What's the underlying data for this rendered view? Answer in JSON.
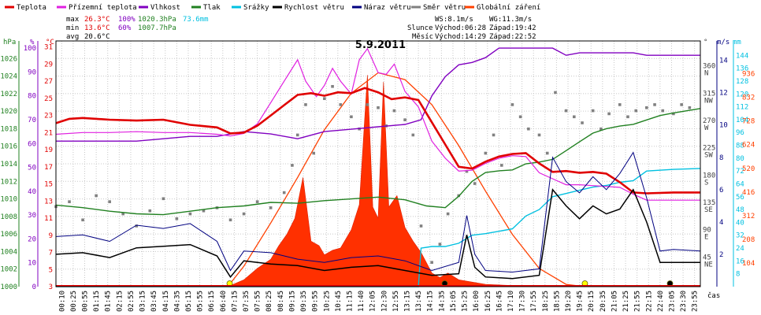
{
  "chart_data": {
    "type": "line",
    "title": "5.9.2011",
    "xlabel": "čas",
    "legend": [
      {
        "name": "Teplota",
        "color": "#e00000"
      },
      {
        "name": "Přízemní teplota",
        "color": "#e020e0"
      },
      {
        "name": "Vlhkost",
        "color": "#8000c0"
      },
      {
        "name": "Tlak",
        "color": "#208020"
      },
      {
        "name": "Srážky",
        "color": "#00c0e0"
      },
      {
        "name": "Rychlost větru",
        "color": "#000000"
      },
      {
        "name": "Náraz větru",
        "color": "#000080"
      },
      {
        "name": "Směr větru",
        "color": "#808080"
      },
      {
        "name": "Globální záření",
        "color": "#ff4000"
      }
    ],
    "stats": {
      "max_label": "max",
      "max_temp": "26.3°C",
      "max_hum": "100%",
      "max_press": "1020.3hPa",
      "max_rain": "73.6mm",
      "min_label": "min",
      "min_temp": "13.6°C",
      "min_hum": "60%",
      "min_press": "1007.7hPa",
      "avg_label": "avg",
      "avg_temp": "20.6°C"
    },
    "wind_info": {
      "ws": "WS:8.1m/s",
      "wg": "WG:11.3m/s"
    },
    "sun": {
      "label": "Slunce",
      "rise": "Východ:06:28",
      "set": "Západ:19:42"
    },
    "moon": {
      "label": "Měsíc",
      "rise": "Východ:14:29",
      "set": "Západ:22:52"
    },
    "axes": {
      "hpa": {
        "unit": "hPa",
        "color": "#208020",
        "ticks": [
          "1000",
          "1002",
          "1004",
          "1006",
          "1008",
          "1010",
          "1012",
          "1014",
          "1016",
          "1018",
          "1020",
          "1022",
          "1024",
          "1026"
        ]
      },
      "pct": {
        "unit": "%",
        "color": "#8000c0",
        "ticks": [
          "0",
          "10",
          "20",
          "30",
          "40",
          "50",
          "60",
          "70",
          "80",
          "90",
          "100"
        ]
      },
      "degc": {
        "unit": "°C",
        "color": "#e00000",
        "ticks": [
          "3",
          "5",
          "7",
          "9",
          "11",
          "13",
          "15",
          "17",
          "19",
          "21",
          "23",
          "25",
          "27",
          "29",
          "31"
        ]
      },
      "dir": {
        "unit": "°",
        "color": "#404040",
        "ticks": [
          "45",
          "90",
          "135",
          "180",
          "225",
          "270",
          "315",
          "360"
        ],
        "labels": [
          "NE",
          "E",
          "SE",
          "S",
          "SW",
          "W",
          "NW",
          "N"
        ]
      },
      "ms": {
        "unit": "m/s",
        "color": "#000080",
        "ticks": [
          "2",
          "4",
          "6",
          "8",
          "10",
          "12",
          "14"
        ]
      },
      "mm": {
        "unit": "mm",
        "color": "#00c0e0",
        "ticks": [
          "8",
          "16",
          "24",
          "32",
          "40",
          "48",
          "56",
          "64",
          "72",
          "80",
          "88",
          "96",
          "104",
          "112",
          "120",
          "128",
          "136",
          "144"
        ]
      },
      "wm2": {
        "color": "#ff4000",
        "ticks": [
          "104",
          "208",
          "312",
          "416",
          "520",
          "624",
          "728",
          "832",
          "936"
        ]
      }
    },
    "x_ticks": [
      "00:10",
      "00:25",
      "00:55",
      "01:15",
      "01:45",
      "02:15",
      "02:55",
      "03:15",
      "03:45",
      "04:15",
      "04:35",
      "05:15",
      "05:55",
      "06:15",
      "06:40",
      "07:15",
      "07:35",
      "07:55",
      "08:25",
      "08:45",
      "09:15",
      "09:35",
      "09:55",
      "10:25",
      "10:45",
      "11:15",
      "11:40",
      "12:05",
      "12:30",
      "12:55",
      "13:15",
      "13:45",
      "14:15",
      "14:35",
      "15:05",
      "15:25",
      "16:00",
      "16:25",
      "16:45",
      "17:10",
      "17:30",
      "17:55",
      "18:25",
      "18:55",
      "19:20",
      "19:45",
      "20:15",
      "20:35",
      "21:05",
      "21:25",
      "21:55",
      "22:15",
      "22:40",
      "23:05",
      "23:30",
      "23:55"
    ],
    "series_temp": [
      [
        0,
        22.1
      ],
      [
        0.5,
        22.6
      ],
      [
        1,
        22.7
      ],
      [
        2,
        22.5
      ],
      [
        3,
        22.4
      ],
      [
        4,
        22.5
      ],
      [
        5,
        21.9
      ],
      [
        6,
        21.6
      ],
      [
        6.5,
        20.9
      ],
      [
        7,
        21.0
      ],
      [
        7.5,
        21.8
      ],
      [
        8,
        23.0
      ],
      [
        8.5,
        24.2
      ],
      [
        9,
        25.4
      ],
      [
        9.5,
        25.6
      ],
      [
        10,
        25.3
      ],
      [
        10.5,
        25.7
      ],
      [
        11,
        25.6
      ],
      [
        11.5,
        26.2
      ],
      [
        12,
        25.7
      ],
      [
        12.5,
        24.9
      ],
      [
        13,
        25.1
      ],
      [
        13.5,
        24.8
      ],
      [
        14,
        22.2
      ],
      [
        14.5,
        19.6
      ],
      [
        15,
        17.0
      ],
      [
        15.5,
        16.8
      ],
      [
        16,
        17.6
      ],
      [
        16.5,
        18.2
      ],
      [
        17,
        18.5
      ],
      [
        17.5,
        18.6
      ],
      [
        18,
        17.4
      ],
      [
        18.5,
        16.4
      ],
      [
        19,
        16.5
      ],
      [
        19.5,
        16.3
      ],
      [
        20,
        16.4
      ],
      [
        20.5,
        16.2
      ],
      [
        21,
        15.2
      ],
      [
        21.5,
        14.0
      ],
      [
        22,
        13.9
      ],
      [
        23,
        14.0
      ],
      [
        24,
        14.0
      ]
    ],
    "series_ground": [
      [
        0,
        20.8
      ],
      [
        1,
        21.0
      ],
      [
        2,
        21.0
      ],
      [
        3,
        21.1
      ],
      [
        4,
        21.0
      ],
      [
        5,
        21.0
      ],
      [
        6,
        20.8
      ],
      [
        6.5,
        20.6
      ],
      [
        7,
        20.9
      ],
      [
        7.5,
        22.0
      ],
      [
        8,
        24.5
      ],
      [
        8.5,
        27.0
      ],
      [
        9,
        29.5
      ],
      [
        9.3,
        27.0
      ],
      [
        9.7,
        25.2
      ],
      [
        10,
        26.5
      ],
      [
        10.3,
        28.5
      ],
      [
        10.6,
        27.0
      ],
      [
        11,
        25.5
      ],
      [
        11.3,
        29.5
      ],
      [
        11.6,
        30.8
      ],
      [
        12,
        28.0
      ],
      [
        12.3,
        27.8
      ],
      [
        12.6,
        29.0
      ],
      [
        13,
        25.8
      ],
      [
        13.5,
        24.0
      ],
      [
        14,
        20.0
      ],
      [
        14.5,
        18.0
      ],
      [
        15,
        16.5
      ],
      [
        15.5,
        16.6
      ],
      [
        16,
        17.4
      ],
      [
        16.5,
        18.0
      ],
      [
        17,
        18.3
      ],
      [
        17.5,
        18.2
      ],
      [
        18,
        16.3
      ],
      [
        18.5,
        15.6
      ],
      [
        19,
        14.9
      ],
      [
        19.5,
        14.9
      ],
      [
        20,
        14.8
      ],
      [
        21,
        14.6
      ],
      [
        21.5,
        13.8
      ],
      [
        22,
        13.1
      ],
      [
        23,
        13.1
      ],
      [
        24,
        13.1
      ]
    ],
    "series_humidity": [
      [
        0,
        61
      ],
      [
        1,
        61
      ],
      [
        2,
        61
      ],
      [
        3,
        61
      ],
      [
        4,
        62
      ],
      [
        5,
        63
      ],
      [
        6,
        63
      ],
      [
        7,
        65
      ],
      [
        8,
        64
      ],
      [
        9,
        62
      ],
      [
        10,
        65
      ],
      [
        11,
        66
      ],
      [
        12,
        67
      ],
      [
        13,
        68
      ],
      [
        13.6,
        70
      ],
      [
        14,
        80
      ],
      [
        14.5,
        88
      ],
      [
        15,
        93
      ],
      [
        15.5,
        94
      ],
      [
        16,
        96
      ],
      [
        16.5,
        100
      ],
      [
        17,
        100
      ],
      [
        17.5,
        100
      ],
      [
        18,
        100
      ],
      [
        18.5,
        100
      ],
      [
        19,
        97
      ],
      [
        19.5,
        98
      ],
      [
        20,
        98
      ],
      [
        20.5,
        98
      ],
      [
        21,
        98
      ],
      [
        21.5,
        98
      ],
      [
        22,
        97
      ],
      [
        22.5,
        97
      ],
      [
        23,
        97
      ],
      [
        24,
        97
      ]
    ],
    "series_pressure": [
      [
        0,
        1009.3
      ],
      [
        1,
        1009.0
      ],
      [
        2,
        1008.6
      ],
      [
        3,
        1008.3
      ],
      [
        4,
        1008.2
      ],
      [
        5,
        1008.6
      ],
      [
        6,
        1009.0
      ],
      [
        7,
        1009.2
      ],
      [
        8,
        1009.6
      ],
      [
        9,
        1009.5
      ],
      [
        10,
        1009.8
      ],
      [
        11,
        1010.0
      ],
      [
        12,
        1010.2
      ],
      [
        13,
        1009.9
      ],
      [
        13.8,
        1009.2
      ],
      [
        14.5,
        1009.0
      ],
      [
        15,
        1010.3
      ],
      [
        15.5,
        1012.0
      ],
      [
        16,
        1013.0
      ],
      [
        16.5,
        1013.2
      ],
      [
        17,
        1013.3
      ],
      [
        17.5,
        1014.0
      ],
      [
        18,
        1014.2
      ],
      [
        18.5,
        1014.5
      ],
      [
        19,
        1015.5
      ],
      [
        19.5,
        1016.5
      ],
      [
        20,
        1017.5
      ],
      [
        20.5,
        1018.0
      ],
      [
        21,
        1018.3
      ],
      [
        21.5,
        1018.5
      ],
      [
        22,
        1019.0
      ],
      [
        22.5,
        1019.5
      ],
      [
        23,
        1019.8
      ],
      [
        24,
        1020.3
      ]
    ],
    "series_rain": [
      [
        0,
        0
      ],
      [
        13.5,
        0
      ],
      [
        13.6,
        24
      ],
      [
        14,
        25
      ],
      [
        14.5,
        25
      ],
      [
        15,
        27
      ],
      [
        15.5,
        32
      ],
      [
        16,
        33
      ],
      [
        17,
        36
      ],
      [
        17.5,
        44
      ],
      [
        18,
        48
      ],
      [
        18.5,
        56
      ],
      [
        19,
        58
      ],
      [
        19.5,
        60
      ],
      [
        20,
        62
      ],
      [
        20.5,
        63
      ],
      [
        21,
        65
      ],
      [
        21.5,
        66
      ],
      [
        22,
        72
      ],
      [
        23,
        73
      ],
      [
        24,
        73.6
      ]
    ],
    "series_wind_speed": [
      [
        0,
        2.0
      ],
      [
        1,
        2.1
      ],
      [
        2,
        1.8
      ],
      [
        3,
        2.4
      ],
      [
        4,
        2.5
      ],
      [
        5,
        2.6
      ],
      [
        6,
        1.9
      ],
      [
        6.5,
        0.6
      ],
      [
        7,
        1.6
      ],
      [
        8,
        1.4
      ],
      [
        9,
        1.3
      ],
      [
        10,
        1.0
      ],
      [
        11,
        1.2
      ],
      [
        12,
        1.3
      ],
      [
        13,
        1.0
      ],
      [
        14,
        0.7
      ],
      [
        15,
        0.8
      ],
      [
        15.3,
        3.2
      ],
      [
        15.6,
        1.2
      ],
      [
        16,
        0.6
      ],
      [
        17,
        0.5
      ],
      [
        18,
        0.7
      ],
      [
        18.5,
        6.0
      ],
      [
        19,
        5.0
      ],
      [
        19.5,
        4.2
      ],
      [
        20,
        5.0
      ],
      [
        20.5,
        4.5
      ],
      [
        21,
        4.8
      ],
      [
        21.5,
        6.0
      ],
      [
        22,
        4.0
      ],
      [
        22.5,
        1.5
      ],
      [
        23,
        1.5
      ],
      [
        24,
        1.5
      ]
    ],
    "series_wind_gust": [
      [
        0,
        3.1
      ],
      [
        1,
        3.2
      ],
      [
        2,
        2.8
      ],
      [
        3,
        3.8
      ],
      [
        4,
        3.6
      ],
      [
        5,
        3.9
      ],
      [
        6,
        2.8
      ],
      [
        6.5,
        1.0
      ],
      [
        7,
        2.2
      ],
      [
        8,
        2.1
      ],
      [
        9,
        1.7
      ],
      [
        10,
        1.5
      ],
      [
        11,
        1.8
      ],
      [
        12,
        1.9
      ],
      [
        13,
        1.6
      ],
      [
        14,
        1.0
      ],
      [
        15,
        1.5
      ],
      [
        15.3,
        4.4
      ],
      [
        15.6,
        2.0
      ],
      [
        16,
        1.0
      ],
      [
        17,
        0.9
      ],
      [
        18,
        1.1
      ],
      [
        18.5,
        8.0
      ],
      [
        19,
        6.5
      ],
      [
        19.5,
        5.8
      ],
      [
        20,
        6.8
      ],
      [
        20.5,
        6.0
      ],
      [
        21,
        7.0
      ],
      [
        21.5,
        8.3
      ],
      [
        22,
        5.5
      ],
      [
        22.5,
        2.2
      ],
      [
        23,
        2.3
      ],
      [
        24,
        2.2
      ]
    ],
    "series_radiation": [
      [
        0,
        0
      ],
      [
        6.4,
        0
      ],
      [
        7,
        30
      ],
      [
        7.5,
        80
      ],
      [
        8,
        120
      ],
      [
        8.3,
        180
      ],
      [
        8.6,
        230
      ],
      [
        8.9,
        300
      ],
      [
        9.2,
        480
      ],
      [
        9.5,
        200
      ],
      [
        9.8,
        180
      ],
      [
        10,
        140
      ],
      [
        10.3,
        160
      ],
      [
        10.6,
        170
      ],
      [
        11,
        250
      ],
      [
        11.3,
        360
      ],
      [
        11.6,
        930
      ],
      [
        11.8,
        350
      ],
      [
        12,
        300
      ],
      [
        12.2,
        900
      ],
      [
        12.4,
        350
      ],
      [
        12.7,
        400
      ],
      [
        13,
        260
      ],
      [
        13.3,
        200
      ],
      [
        13.6,
        150
      ],
      [
        14,
        60
      ],
      [
        14.3,
        40
      ],
      [
        14.6,
        60
      ],
      [
        15,
        30
      ],
      [
        15.5,
        20
      ],
      [
        16,
        10
      ],
      [
        17,
        5
      ],
      [
        18,
        3
      ],
      [
        19,
        0
      ],
      [
        24,
        0
      ]
    ],
    "series_radiation_theoretical": [
      [
        6.4,
        0
      ],
      [
        7,
        90
      ],
      [
        8,
        280
      ],
      [
        9,
        480
      ],
      [
        10,
        690
      ],
      [
        11,
        850
      ],
      [
        12,
        940
      ],
      [
        13,
        910
      ],
      [
        14,
        800
      ],
      [
        15,
        620
      ],
      [
        16,
        420
      ],
      [
        17,
        230
      ],
      [
        18,
        80
      ],
      [
        19,
        10
      ],
      [
        19.7,
        0
      ]
    ],
    "series_direction": [
      [
        0,
        132
      ],
      [
        0.5,
        140
      ],
      [
        1,
        110
      ],
      [
        1.5,
        150
      ],
      [
        2,
        140
      ],
      [
        2.5,
        120
      ],
      [
        3,
        100
      ],
      [
        3.5,
        125
      ],
      [
        4,
        145
      ],
      [
        4.5,
        112
      ],
      [
        5,
        120
      ],
      [
        5.5,
        125
      ],
      [
        6,
        130
      ],
      [
        6.5,
        110
      ],
      [
        7,
        120
      ],
      [
        7.5,
        140
      ],
      [
        8,
        130
      ],
      [
        8.5,
        155
      ],
      [
        8.8,
        200
      ],
      [
        9,
        250
      ],
      [
        9.3,
        300
      ],
      [
        9.6,
        220
      ],
      [
        10,
        310
      ],
      [
        10.3,
        330
      ],
      [
        10.6,
        300
      ],
      [
        11,
        280
      ],
      [
        11.3,
        260
      ],
      [
        11.6,
        300
      ],
      [
        12,
        295
      ],
      [
        12.3,
        265
      ],
      [
        12.6,
        290
      ],
      [
        13,
        275
      ],
      [
        13.3,
        250
      ],
      [
        13.6,
        100
      ],
      [
        14,
        40
      ],
      [
        14.3,
        70
      ],
      [
        14.6,
        120
      ],
      [
        15,
        150
      ],
      [
        15.3,
        190
      ],
      [
        15.6,
        170
      ],
      [
        16,
        220
      ],
      [
        16.3,
        250
      ],
      [
        16.6,
        200
      ],
      [
        17,
        300
      ],
      [
        17.3,
        280
      ],
      [
        17.6,
        260
      ],
      [
        18,
        250
      ],
      [
        18.3,
        220
      ],
      [
        18.6,
        320
      ],
      [
        19,
        290
      ],
      [
        19.3,
        280
      ],
      [
        19.6,
        270
      ],
      [
        20,
        290
      ],
      [
        20.3,
        260
      ],
      [
        20.6,
        285
      ],
      [
        21,
        300
      ],
      [
        21.3,
        280
      ],
      [
        21.6,
        290
      ],
      [
        22,
        295
      ],
      [
        22.3,
        300
      ],
      [
        22.6,
        290
      ],
      [
        23,
        285
      ],
      [
        23.3,
        300
      ],
      [
        23.6,
        295
      ]
    ],
    "moon_markers": [
      {
        "time": 6.47,
        "kind": "sunrise"
      },
      {
        "time": 19.7,
        "kind": "sunset"
      },
      {
        "time": 14.48,
        "kind": "moonrise"
      },
      {
        "time": 22.87,
        "kind": "moonset"
      }
    ]
  }
}
